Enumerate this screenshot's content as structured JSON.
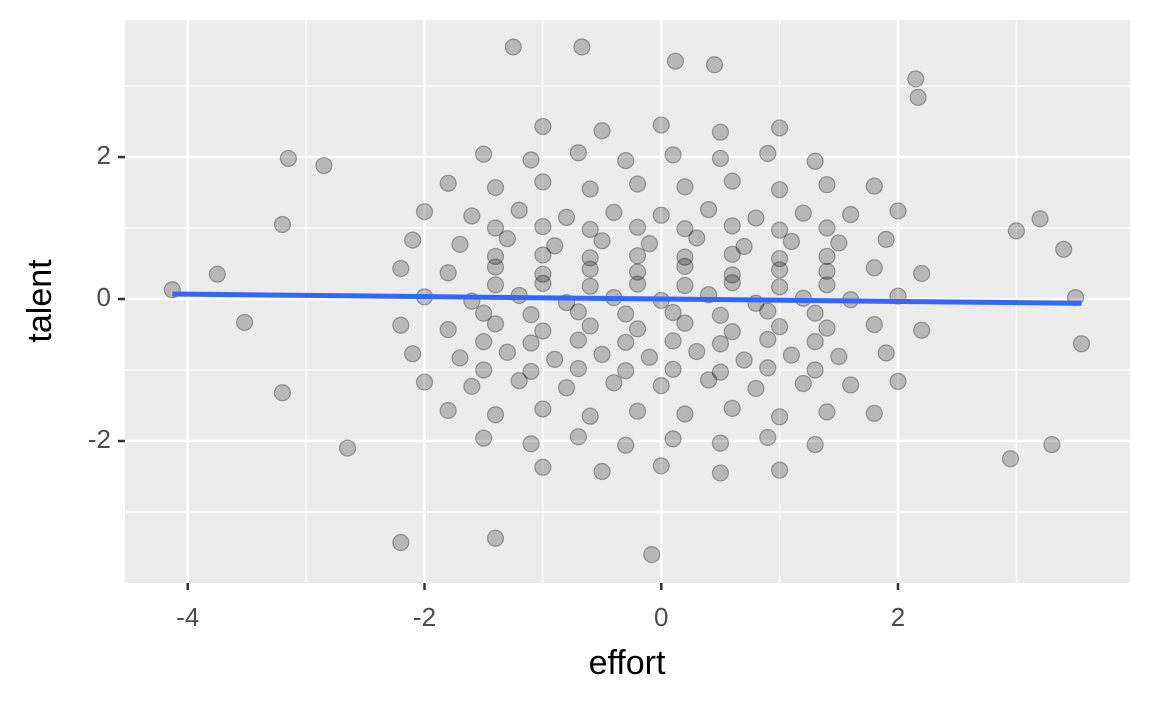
{
  "chart_data": {
    "type": "scatter",
    "x_label": "effort",
    "y_label": "talent",
    "xlim": [
      -4.53,
      3.96
    ],
    "ylim": [
      -4.0,
      3.93
    ],
    "xticks": [
      -4,
      -2,
      0,
      2
    ],
    "yticks": [
      -2,
      0,
      2
    ],
    "x_minor_ticks": [
      -3,
      -1,
      1,
      3
    ],
    "y_minor_ticks": [
      -3,
      -1,
      1,
      3
    ],
    "grid": true,
    "panel_color": "#EBEBEB",
    "series": [
      {
        "color": "#000000",
        "opacity": 0.22,
        "x": [
          -1.0,
          -0.5,
          0,
          0.5,
          1.0,
          -1.5,
          -1.1,
          -0.7,
          -0.3,
          0.1,
          0.5,
          0.9,
          1.3,
          -1.8,
          -1.4,
          -1.0,
          -0.6,
          -0.2,
          0.2,
          0.6,
          1.0,
          1.4,
          1.8,
          -2.0,
          -1.6,
          -1.2,
          -0.8,
          -0.4,
          0,
          0.4,
          0.8,
          1.2,
          1.6,
          2.0,
          -2.1,
          -1.7,
          -1.3,
          -0.9,
          -0.5,
          -0.1,
          0.3,
          0.7,
          1.1,
          1.5,
          1.9,
          -2.2,
          -1.8,
          -1.4,
          -1.0,
          -0.6,
          -0.2,
          0.2,
          0.6,
          1.0,
          1.4,
          1.8,
          2.2,
          -2.0,
          -1.6,
          -1.2,
          -0.8,
          -0.4,
          0,
          0.4,
          0.8,
          1.2,
          1.6,
          2.0,
          -2.2,
          -1.8,
          -1.4,
          -1.0,
          -0.6,
          -0.2,
          0.2,
          0.6,
          1.0,
          1.4,
          1.8,
          2.2,
          -2.1,
          -1.7,
          -1.3,
          -0.9,
          -0.5,
          -0.1,
          0.3,
          0.7,
          1.1,
          1.5,
          1.9,
          -2.0,
          -1.6,
          -1.2,
          -0.8,
          -0.4,
          0,
          0.4,
          0.8,
          1.2,
          1.6,
          2.0,
          -1.8,
          -1.4,
          -1.0,
          -0.6,
          -0.2,
          0.2,
          0.6,
          1.0,
          1.4,
          1.8,
          -1.5,
          -1.1,
          -0.7,
          -0.3,
          0.1,
          0.5,
          0.9,
          1.3,
          -1.0,
          -0.5,
          0,
          0.5,
          1.0,
          -1.4,
          -1.0,
          -0.6,
          -0.2,
          0.2,
          0.6,
          1.0,
          1.4,
          -1.5,
          -1.1,
          -0.7,
          -0.3,
          0.1,
          0.5,
          0.9,
          1.3,
          -1.4,
          -1.0,
          -0.6,
          -0.2,
          0.2,
          0.6,
          1.0,
          1.4,
          -1.5,
          -1.1,
          -0.7,
          -0.3,
          0.1,
          0.5,
          0.9,
          1.3,
          -1.4,
          -1.0,
          -0.6,
          -0.2,
          0.2,
          0.6,
          1.0,
          1.4,
          -1.5,
          -1.1,
          -0.7,
          -0.3,
          0.1,
          0.5,
          0.9,
          1.3,
          -4.13,
          -3.75,
          -3.52,
          -3.2,
          -3.15,
          -2.85,
          -3.2,
          -2.65,
          -2.2,
          -1.4,
          -1.25,
          -0.67,
          0.12,
          0.45,
          2.15,
          2.17,
          3.2,
          3.5,
          3.55,
          3.3,
          2.95,
          -0.08,
          3.0,
          3.4
        ],
        "y": [
          2.43,
          2.37,
          2.45,
          2.35,
          2.41,
          2.04,
          1.96,
          2.06,
          1.95,
          2.03,
          1.98,
          2.05,
          1.94,
          1.63,
          1.57,
          1.65,
          1.55,
          1.62,
          1.58,
          1.66,
          1.54,
          1.61,
          1.59,
          1.23,
          1.17,
          1.25,
          1.15,
          1.22,
          1.18,
          1.26,
          1.14,
          1.21,
          1.19,
          1.24,
          0.83,
          0.77,
          0.85,
          0.75,
          0.82,
          0.78,
          0.86,
          0.74,
          0.81,
          0.79,
          0.84,
          0.43,
          0.37,
          0.45,
          0.35,
          0.42,
          0.38,
          0.46,
          0.34,
          0.41,
          0.39,
          0.44,
          0.36,
          0.03,
          -0.03,
          0.05,
          -0.05,
          0.02,
          -0.02,
          0.06,
          -0.06,
          0.01,
          -0.01,
          0.04,
          -0.37,
          -0.43,
          -0.35,
          -0.45,
          -0.38,
          -0.42,
          -0.34,
          -0.46,
          -0.39,
          -0.41,
          -0.36,
          -0.44,
          -0.77,
          -0.83,
          -0.75,
          -0.85,
          -0.78,
          -0.82,
          -0.74,
          -0.86,
          -0.79,
          -0.81,
          -0.76,
          -1.17,
          -1.23,
          -1.15,
          -1.25,
          -1.18,
          -1.22,
          -1.14,
          -1.26,
          -1.19,
          -1.21,
          -1.16,
          -1.57,
          -1.63,
          -1.55,
          -1.65,
          -1.58,
          -1.62,
          -1.54,
          -1.66,
          -1.59,
          -1.61,
          -1.96,
          -2.04,
          -1.94,
          -2.06,
          -1.97,
          -2.03,
          -1.95,
          -2.05,
          -2.37,
          -2.43,
          -2.35,
          -2.45,
          -2.41,
          0.2,
          0.22,
          0.18,
          0.21,
          0.19,
          0.23,
          0.17,
          0.2,
          -0.2,
          -0.22,
          -0.18,
          -0.21,
          -0.19,
          -0.23,
          -0.17,
          -0.2,
          0.6,
          0.62,
          0.58,
          0.61,
          0.59,
          0.63,
          0.57,
          0.6,
          -0.6,
          -0.62,
          -0.58,
          -0.61,
          -0.59,
          -0.63,
          -0.57,
          -0.6,
          1.0,
          1.02,
          0.98,
          1.01,
          0.99,
          1.03,
          0.97,
          1.0,
          -1.0,
          -1.02,
          -0.98,
          -1.01,
          -0.99,
          -1.03,
          -0.97,
          -1.0,
          0.13,
          0.35,
          -0.33,
          1.05,
          1.98,
          1.88,
          -1.32,
          -2.1,
          -3.43,
          -3.37,
          3.55,
          3.55,
          3.35,
          3.3,
          3.1,
          2.84,
          1.13,
          0.02,
          -0.63,
          -2.05,
          -2.25,
          -3.6,
          0.96,
          0.7
        ]
      }
    ],
    "trend_line": {
      "color": "#3366FF",
      "x": [
        -4.13,
        3.55
      ],
      "y": [
        0.07,
        -0.06
      ]
    }
  }
}
